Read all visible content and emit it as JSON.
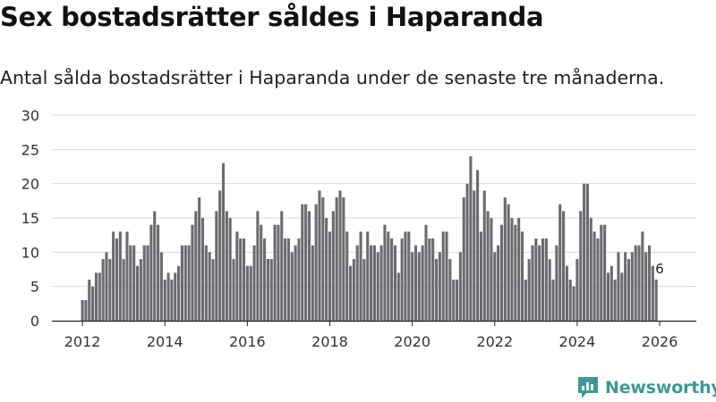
{
  "title": "Sex bostadsrätter såldes i Haparanda",
  "subtitle": "Antal sålda bostadsrätter i Haparanda under de senaste tre månaderna.",
  "brand": {
    "name": "Newsworthy",
    "logo_icon": "newsworthy-logo-icon"
  },
  "colors": {
    "bar": "#6b6b70",
    "highlight": "#2a9d8f",
    "grid": "#d9d9d9",
    "axis": "#222222",
    "brand": "#3d9a96"
  },
  "chart_data": {
    "type": "bar",
    "title": "Sex bostadsrätter såldes i Haparanda",
    "xlabel": "",
    "ylabel": "",
    "ylim": [
      0,
      30
    ],
    "yticks": [
      0,
      5,
      10,
      15,
      20,
      25,
      30
    ],
    "grid": true,
    "x_start": "2012-01",
    "xticks": [
      {
        "label": "2012",
        "index": 0
      },
      {
        "label": "2014",
        "index": 24
      },
      {
        "label": "2016",
        "index": 48
      },
      {
        "label": "2018",
        "index": 72
      },
      {
        "label": "2020",
        "index": 96
      },
      {
        "label": "2022",
        "index": 120
      },
      {
        "label": "2024",
        "index": 144
      },
      {
        "label": "2026",
        "index": 168
      }
    ],
    "values": [
      3,
      3,
      6,
      5,
      7,
      7,
      9,
      10,
      9,
      13,
      12,
      13,
      9,
      13,
      11,
      11,
      8,
      9,
      11,
      11,
      14,
      16,
      14,
      10,
      6,
      7,
      6,
      7,
      8,
      11,
      11,
      11,
      14,
      16,
      18,
      15,
      11,
      10,
      9,
      16,
      19,
      23,
      16,
      15,
      9,
      13,
      12,
      12,
      8,
      8,
      11,
      16,
      14,
      12,
      9,
      9,
      14,
      14,
      16,
      12,
      12,
      10,
      11,
      12,
      17,
      17,
      16,
      11,
      17,
      19,
      18,
      15,
      13,
      16,
      18,
      19,
      18,
      13,
      8,
      9,
      11,
      13,
      9,
      13,
      11,
      11,
      10,
      11,
      14,
      13,
      12,
      11,
      7,
      12,
      13,
      13,
      10,
      11,
      10,
      11,
      14,
      12,
      12,
      9,
      10,
      13,
      13,
      9,
      6,
      6,
      10,
      18,
      20,
      24,
      19,
      22,
      13,
      19,
      16,
      15,
      10,
      11,
      14,
      18,
      17,
      15,
      14,
      15,
      13,
      6,
      9,
      11,
      12,
      11,
      12,
      12,
      9,
      6,
      11,
      17,
      16,
      8,
      6,
      5,
      9,
      16,
      20,
      20,
      15,
      13,
      12,
      14,
      14,
      7,
      8,
      6,
      10,
      7,
      10,
      9,
      10,
      11,
      11,
      13,
      10,
      11,
      8,
      6
    ],
    "highlight": {
      "index": 168,
      "value": 6,
      "label": "6"
    }
  }
}
